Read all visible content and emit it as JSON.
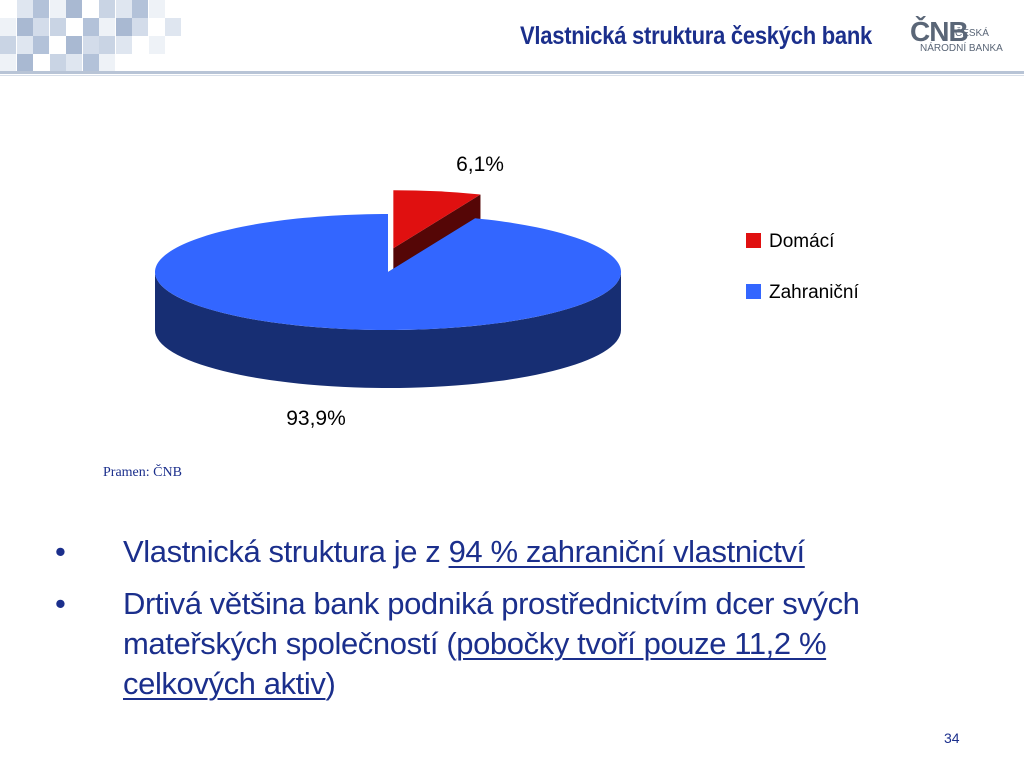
{
  "slide": {
    "title": "Vlastnická struktura českých bank",
    "source": "Pramen: ČNB",
    "page_number": "34"
  },
  "logo": {
    "mark": "ČNB",
    "line1": "ČESKÁ",
    "line2": "NÁRODNÍ BANKA"
  },
  "colors": {
    "title": "#1b2f8c",
    "domestic": "#e01010",
    "foreign": "#3366ff"
  },
  "chart_data": {
    "type": "pie",
    "labels": [
      "Domácí",
      "Zahraniční"
    ],
    "values": [
      6.1,
      93.9
    ],
    "value_labels": [
      "6,1%",
      "93,9%"
    ],
    "legend": "right",
    "colors": [
      "#e01010",
      "#3366ff"
    ]
  },
  "bullets": [
    {
      "parts": [
        {
          "text": "Vlastnická struktura je z ",
          "u": false
        },
        {
          "text": "94 % zahraniční vlastnictví",
          "u": true
        }
      ]
    },
    {
      "parts": [
        {
          "text": "Drtivá většina bank podniká prostřednictvím dcer svých mateřských společností (",
          "u": false
        },
        {
          "text": "pobočky tvoří pouze 11,2 % celkových aktiv",
          "u": true
        },
        {
          "text": ")",
          "u": false
        }
      ]
    }
  ]
}
